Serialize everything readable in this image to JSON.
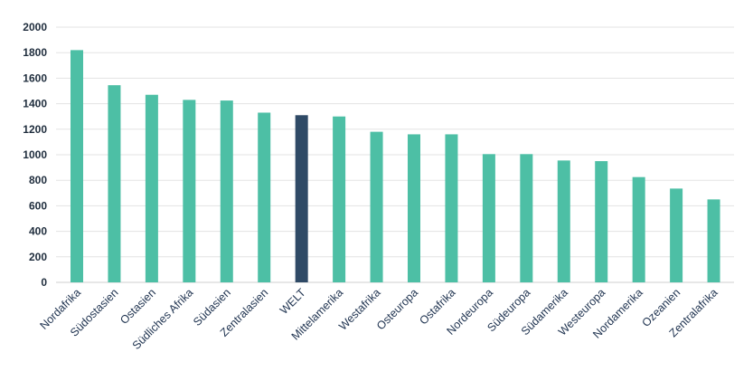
{
  "chart_data": {
    "type": "bar",
    "title": "",
    "xlabel": "",
    "ylabel": "",
    "ylim": [
      0,
      2000
    ],
    "yticks": [
      0,
      200,
      400,
      600,
      800,
      1000,
      1200,
      1400,
      1600,
      1800,
      2000
    ],
    "grid": true,
    "categories": [
      "Nordafrika",
      "Südostasien",
      "Ostasien",
      "Südliches Afrika",
      "Südasien",
      "Zentralasien",
      "WELT",
      "Mittelamerika",
      "Westafrika",
      "Osteuropa",
      "Ostafrika",
      "Nordeuropa",
      "Südeuropa",
      "Südamerika",
      "Westeuropa",
      "Nordamerika",
      "Ozeanien",
      "Zentralafrika"
    ],
    "values": [
      1820,
      1545,
      1470,
      1430,
      1425,
      1330,
      1310,
      1300,
      1180,
      1160,
      1160,
      1005,
      1005,
      955,
      950,
      825,
      735,
      650
    ],
    "highlight_category": "WELT",
    "colors": {
      "bar": "#4dbfa5",
      "highlight": "#2f4a66"
    }
  }
}
